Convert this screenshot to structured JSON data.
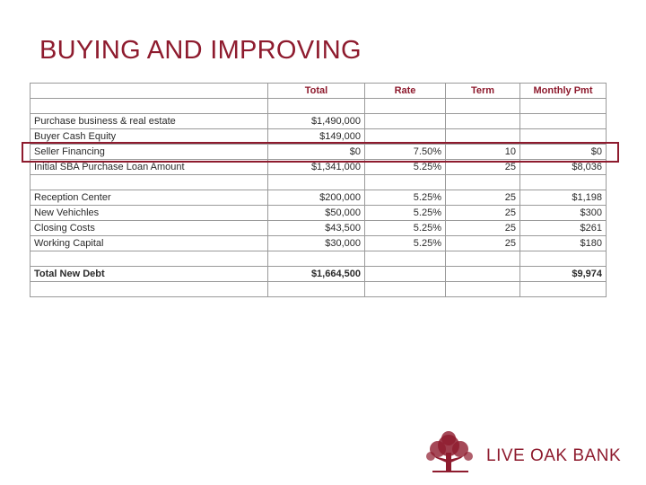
{
  "header": {
    "title": "BUYING AND IMPROVING"
  },
  "table": {
    "columns": [
      "Total",
      "Rate",
      "Term",
      "Monthly Pmt"
    ],
    "sections": [
      [
        {
          "label": "Purchase business & real estate",
          "total": "$1,490,000"
        },
        {
          "label": "Buyer Cash Equity",
          "total": "$149,000"
        },
        {
          "label": "Seller Financing",
          "total": "$0",
          "rate": "7.50%",
          "term": "10",
          "pmt": "$0"
        },
        {
          "label": "Initial SBA Purchase Loan Amount",
          "total": "$1,341,000",
          "rate": "5.25%",
          "term": "25",
          "pmt": "$8,036"
        }
      ],
      [
        {
          "label": "Reception Center",
          "total": "$200,000",
          "rate": "5.25%",
          "term": "25",
          "pmt": "$1,198"
        },
        {
          "label": "New Vehichles",
          "total": "$50,000",
          "rate": "5.25%",
          "term": "25",
          "pmt": "$300"
        },
        {
          "label": "Closing Costs",
          "total": "$43,500",
          "rate": "5.25%",
          "term": "25",
          "pmt": "$261"
        },
        {
          "label": "Working Capital",
          "total": "$30,000",
          "rate": "5.25%",
          "term": "25",
          "pmt": "$180"
        }
      ],
      [
        {
          "label": "Total New Debt",
          "total": "$1,664,500",
          "pmt": "$9,974"
        }
      ]
    ]
  },
  "logo": {
    "text": "LIVE OAK BANK"
  }
}
